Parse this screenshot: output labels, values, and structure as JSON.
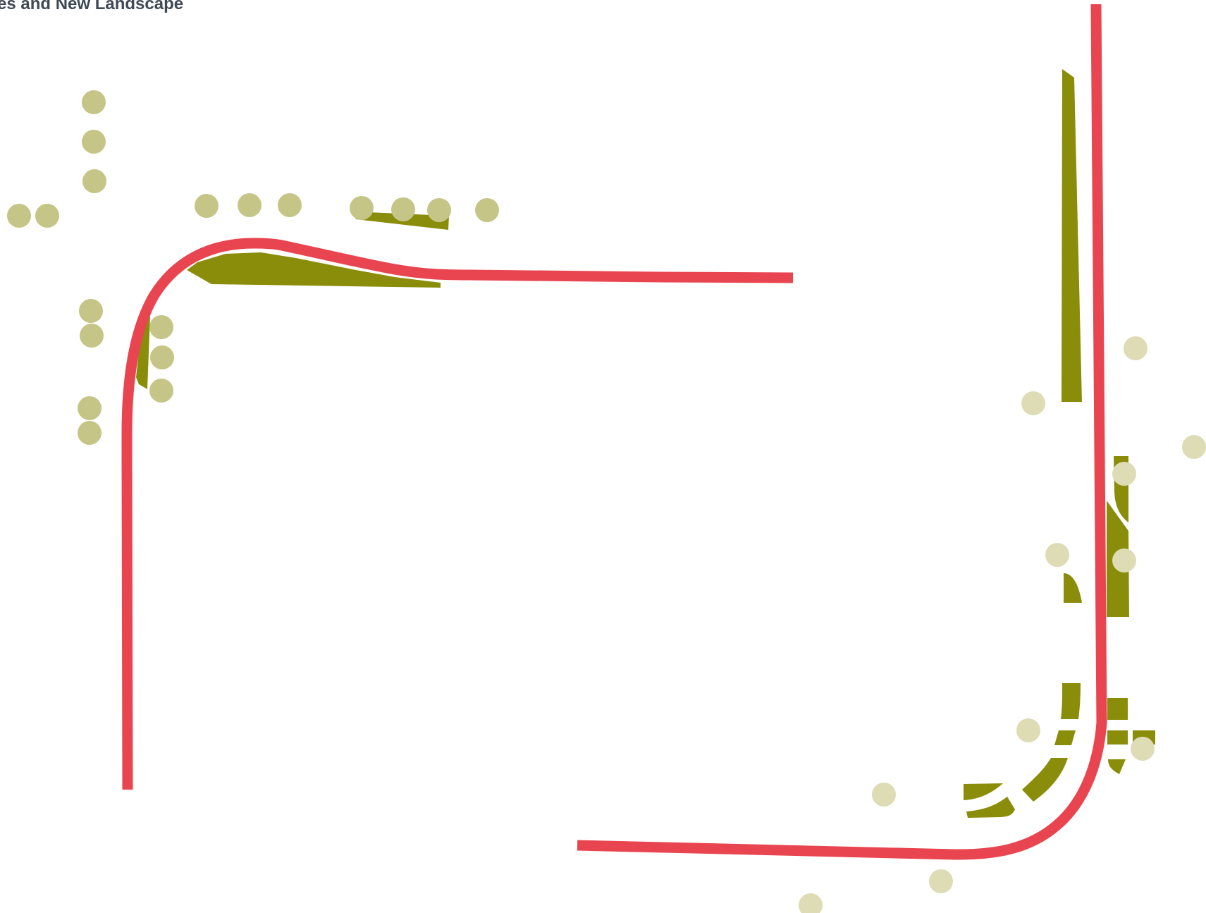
{
  "title": "es and New Landscape",
  "colors": {
    "road": "#e84550",
    "island": "#8a8d0a",
    "tree": "#c4c586",
    "tree_light": "#dddcb5",
    "title": "#3f4a55",
    "background": "#ffffff"
  }
}
